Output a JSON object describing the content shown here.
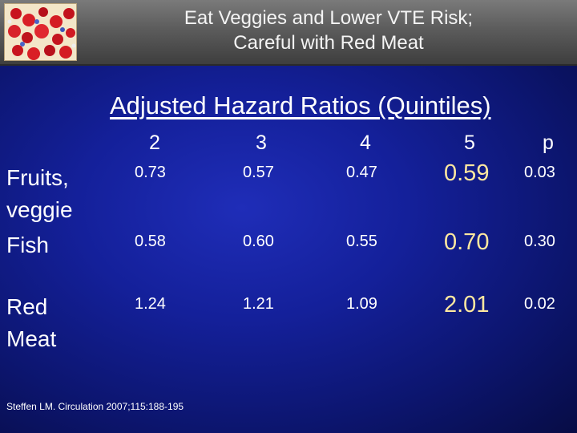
{
  "header": {
    "title_line1": "Eat Veggies and Lower VTE Risk;",
    "title_line2": "Careful with Red Meat",
    "logo_icon": "blood-cells-icon"
  },
  "subtitle": "Adjusted Hazard Ratios (Quintiles)",
  "table": {
    "columns": [
      "2",
      "3",
      "4",
      "5",
      "p"
    ],
    "rows": [
      {
        "label_lines": [
          "Fruits,",
          "veggie"
        ],
        "values": [
          "0.73",
          "0.57",
          "0.47",
          "0.59",
          "0.03"
        ]
      },
      {
        "label_lines": [
          "Fish"
        ],
        "values": [
          "0.58",
          "0.60",
          "0.55",
          "0.70",
          "0.30"
        ]
      },
      {
        "label_lines": [
          "Red",
          "Meat"
        ],
        "values": [
          "1.24",
          "1.21",
          "1.09",
          "2.01",
          "0.02"
        ]
      }
    ]
  },
  "colors": {
    "highlight": "#ffe8a0",
    "background": "#14209a",
    "header": "#5c5c5c"
  },
  "citation": "Steffen LM. Circulation 2007;115:188-195"
}
